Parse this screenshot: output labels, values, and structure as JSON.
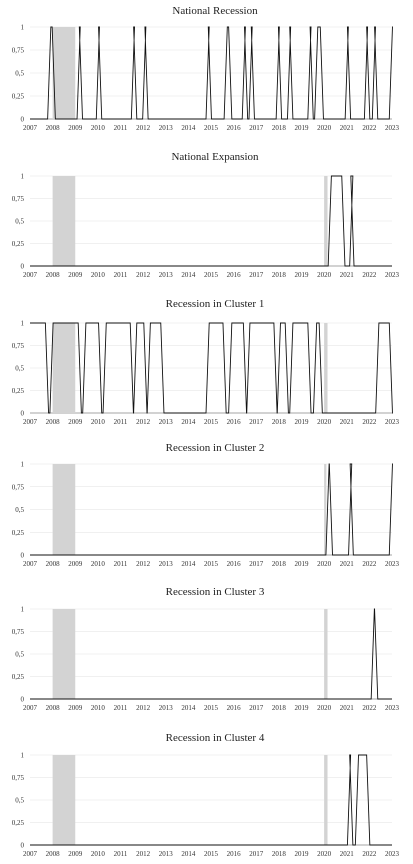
{
  "chart_data": [
    {
      "type": "line",
      "title": "National Recession",
      "ylim": [
        0,
        1
      ],
      "yticks": [
        "0",
        "0,25",
        "0,5",
        "0,75",
        "1"
      ],
      "xticks": [
        "2007",
        "2008",
        "2009",
        "2010",
        "2011",
        "2012",
        "2013",
        "2014",
        "2015",
        "2016",
        "2017",
        "2018",
        "2019",
        "2020",
        "2021",
        "2022",
        "2023"
      ],
      "shading": [
        [
          2008.0,
          2009.0
        ]
      ],
      "series": [
        {
          "steps": [
            [
              2007.0,
              0
            ],
            [
              2007.85,
              1
            ],
            [
              2008.05,
              0
            ],
            [
              2009.15,
              1
            ],
            [
              2009.25,
              0
            ],
            [
              2010.0,
              1
            ],
            [
              2010.1,
              0
            ],
            [
              2011.55,
              1
            ],
            [
              2011.65,
              0
            ],
            [
              2012.05,
              1
            ],
            [
              2012.15,
              0
            ],
            [
              2014.85,
              1
            ],
            [
              2014.95,
              0
            ],
            [
              2015.65,
              1
            ],
            [
              2015.85,
              0
            ],
            [
              2016.45,
              1
            ],
            [
              2016.55,
              0
            ],
            [
              2016.75,
              1
            ],
            [
              2016.85,
              0
            ],
            [
              2017.95,
              1
            ],
            [
              2018.05,
              0
            ],
            [
              2018.45,
              1
            ],
            [
              2018.55,
              0
            ],
            [
              2019.35,
              1
            ],
            [
              2019.45,
              0
            ],
            [
              2019.65,
              1
            ],
            [
              2019.9,
              0
            ],
            [
              2021.0,
              1
            ],
            [
              2021.1,
              0
            ],
            [
              2021.85,
              1
            ],
            [
              2021.95,
              0
            ],
            [
              2022.2,
              1
            ],
            [
              2022.3,
              0
            ],
            [
              2022.95,
              1
            ],
            [
              2023.0,
              1
            ]
          ]
        }
      ]
    },
    {
      "type": "line",
      "title": "National Expansion",
      "ylim": [
        0,
        1
      ],
      "yticks": [
        "0",
        "0,25",
        "0,5",
        "0,75",
        "1"
      ],
      "xticks": [
        "2007",
        "2008",
        "2009",
        "2010",
        "2011",
        "2012",
        "2013",
        "2014",
        "2015",
        "2016",
        "2017",
        "2018",
        "2019",
        "2020",
        "2021",
        "2022",
        "2023"
      ],
      "shading": [
        [
          2008.0,
          2009.0
        ],
        [
          2020.0,
          2020.15
        ]
      ],
      "series": [
        {
          "steps": [
            [
              2007.0,
              0
            ],
            [
              2020.25,
              1
            ],
            [
              2020.85,
              0
            ],
            [
              2021.2,
              1
            ],
            [
              2021.25,
              0
            ],
            [
              2023.0,
              0
            ]
          ]
        }
      ]
    },
    {
      "type": "line",
      "title": "Recession in Cluster 1",
      "ylim": [
        0,
        1
      ],
      "yticks": [
        "0",
        "0,25",
        "0,5",
        "0,75",
        "1"
      ],
      "xticks": [
        "2007",
        "2008",
        "2009",
        "2010",
        "2011",
        "2012",
        "2013",
        "2014",
        "2015",
        "2016",
        "2017",
        "2018",
        "2019",
        "2020",
        "2021",
        "2022",
        "2023"
      ],
      "shading": [
        [
          2008.0,
          2009.0
        ],
        [
          2020.0,
          2020.15
        ]
      ],
      "series": [
        {
          "steps": [
            [
              2007.0,
              1
            ],
            [
              2007.75,
              0
            ],
            [
              2007.95,
              1
            ],
            [
              2009.2,
              0
            ],
            [
              2009.4,
              1
            ],
            [
              2010.1,
              0
            ],
            [
              2010.3,
              1
            ],
            [
              2011.5,
              0
            ],
            [
              2011.65,
              1
            ],
            [
              2012.1,
              0
            ],
            [
              2012.25,
              1
            ],
            [
              2012.85,
              0
            ],
            [
              2014.85,
              1
            ],
            [
              2015.6,
              0
            ],
            [
              2015.85,
              1
            ],
            [
              2016.5,
              0
            ],
            [
              2016.65,
              1
            ],
            [
              2017.85,
              0
            ],
            [
              2018.0,
              1
            ],
            [
              2018.35,
              0
            ],
            [
              2018.55,
              1
            ],
            [
              2019.35,
              0
            ],
            [
              2019.6,
              1
            ],
            [
              2019.85,
              0
            ],
            [
              2022.35,
              1
            ],
            [
              2022.95,
              0
            ],
            [
              2023.0,
              0
            ]
          ]
        }
      ]
    },
    {
      "type": "line",
      "title": "Recession in Cluster 2",
      "ylim": [
        0,
        1
      ],
      "yticks": [
        "0",
        "0,25",
        "0,5",
        "0,75",
        "1"
      ],
      "xticks": [
        "2007",
        "2008",
        "2009",
        "2010",
        "2011",
        "2012",
        "2013",
        "2014",
        "2015",
        "2016",
        "2017",
        "2018",
        "2019",
        "2020",
        "2021",
        "2022",
        "2023"
      ],
      "shading": [
        [
          2008.0,
          2009.0
        ],
        [
          2020.0,
          2020.1
        ]
      ],
      "series": [
        {
          "steps": [
            [
              2007.0,
              0
            ],
            [
              2020.15,
              1
            ],
            [
              2020.3,
              0
            ],
            [
              2021.15,
              1
            ],
            [
              2021.22,
              0
            ],
            [
              2022.95,
              1
            ],
            [
              2023.0,
              1
            ]
          ]
        }
      ]
    },
    {
      "type": "line",
      "title": "Recession in Cluster 3",
      "ylim": [
        0,
        1
      ],
      "yticks": [
        "0",
        "0,25",
        "0,5",
        "0,75",
        "1"
      ],
      "xticks": [
        "2007",
        "2008",
        "2009",
        "2010",
        "2011",
        "2012",
        "2013",
        "2014",
        "2015",
        "2016",
        "2017",
        "2018",
        "2019",
        "2020",
        "2021",
        "2022",
        "2023"
      ],
      "shading": [
        [
          2008.0,
          2009.0
        ],
        [
          2020.0,
          2020.15
        ]
      ],
      "series": [
        {
          "steps": [
            [
              2007.0,
              0
            ],
            [
              2022.15,
              1
            ],
            [
              2022.3,
              0
            ],
            [
              2023.0,
              0
            ]
          ]
        }
      ]
    },
    {
      "type": "line",
      "title": "Recession in Cluster 4",
      "ylim": [
        0,
        1
      ],
      "yticks": [
        "0",
        "0,25",
        "0,5",
        "0,75",
        "1"
      ],
      "xticks": [
        "2007",
        "2008",
        "2009",
        "2010",
        "2011",
        "2012",
        "2013",
        "2014",
        "2015",
        "2016",
        "2017",
        "2018",
        "2019",
        "2020",
        "2021",
        "2022",
        "2023"
      ],
      "shading": [
        [
          2008.0,
          2009.0
        ],
        [
          2020.0,
          2020.15
        ]
      ],
      "series": [
        {
          "steps": [
            [
              2007.0,
              0
            ],
            [
              2021.1,
              1
            ],
            [
              2021.2,
              0
            ],
            [
              2021.45,
              1
            ],
            [
              2021.95,
              0
            ],
            [
              2023.0,
              0
            ]
          ]
        }
      ]
    }
  ]
}
